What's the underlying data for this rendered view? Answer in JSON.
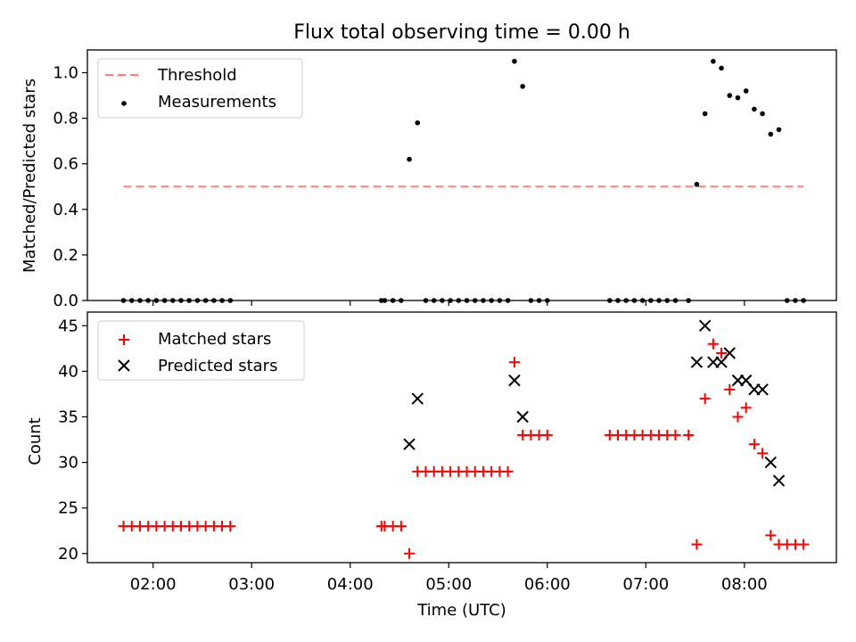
{
  "chart_data": [
    {
      "type": "scatter",
      "title": "Flux total observing time = 0.00 h",
      "xlabel": "",
      "ylabel": "Matched/Predicted stars",
      "xlim": [
        "01:20",
        "08:56"
      ],
      "ylim": [
        0,
        1.1
      ],
      "y_ticks": [
        "0.0",
        "0.2",
        "0.4",
        "0.6",
        "0.8",
        "1.0"
      ],
      "legend": {
        "position": "top-left",
        "entries": [
          "Threshold",
          "Measurements"
        ]
      },
      "series": [
        {
          "name": "Threshold",
          "style": "dashed-line",
          "color": "#ff7f7f",
          "points": [
            {
              "x": "01:42",
              "y": 0.5
            },
            {
              "x": "08:36",
              "y": 0.5
            }
          ]
        },
        {
          "name": "Measurements",
          "style": "dot",
          "color": "#000000",
          "points": [
            {
              "x": "01:42",
              "y": 0
            },
            {
              "x": "01:47",
              "y": 0
            },
            {
              "x": "01:52",
              "y": 0
            },
            {
              "x": "01:57",
              "y": 0
            },
            {
              "x": "02:02",
              "y": 0
            },
            {
              "x": "02:07",
              "y": 0
            },
            {
              "x": "02:12",
              "y": 0
            },
            {
              "x": "02:17",
              "y": 0
            },
            {
              "x": "02:22",
              "y": 0
            },
            {
              "x": "02:27",
              "y": 0
            },
            {
              "x": "02:32",
              "y": 0
            },
            {
              "x": "02:37",
              "y": 0
            },
            {
              "x": "02:42",
              "y": 0
            },
            {
              "x": "02:47",
              "y": 0
            },
            {
              "x": "04:19",
              "y": 0
            },
            {
              "x": "04:21",
              "y": 0
            },
            {
              "x": "04:26",
              "y": 0
            },
            {
              "x": "04:31",
              "y": 0
            },
            {
              "x": "04:36",
              "y": 0.62
            },
            {
              "x": "04:41",
              "y": 0.78
            },
            {
              "x": "04:46",
              "y": 0
            },
            {
              "x": "04:51",
              "y": 0
            },
            {
              "x": "04:56",
              "y": 0
            },
            {
              "x": "05:01",
              "y": 0
            },
            {
              "x": "05:06",
              "y": 0
            },
            {
              "x": "05:11",
              "y": 0
            },
            {
              "x": "05:16",
              "y": 0
            },
            {
              "x": "05:21",
              "y": 0
            },
            {
              "x": "05:26",
              "y": 0
            },
            {
              "x": "05:31",
              "y": 0
            },
            {
              "x": "05:36",
              "y": 0
            },
            {
              "x": "05:40",
              "y": 1.05
            },
            {
              "x": "05:45",
              "y": 0.94
            },
            {
              "x": "05:50",
              "y": 0
            },
            {
              "x": "05:55",
              "y": 0
            },
            {
              "x": "06:00",
              "y": 0
            },
            {
              "x": "06:38",
              "y": 0
            },
            {
              "x": "06:43",
              "y": 0
            },
            {
              "x": "06:48",
              "y": 0
            },
            {
              "x": "06:53",
              "y": 0
            },
            {
              "x": "06:58",
              "y": 0
            },
            {
              "x": "07:03",
              "y": 0
            },
            {
              "x": "07:08",
              "y": 0
            },
            {
              "x": "07:13",
              "y": 0
            },
            {
              "x": "07:18",
              "y": 0
            },
            {
              "x": "07:26",
              "y": 0
            },
            {
              "x": "07:31",
              "y": 0.51
            },
            {
              "x": "07:36",
              "y": 0.82
            },
            {
              "x": "07:41",
              "y": 1.05
            },
            {
              "x": "07:46",
              "y": 1.02
            },
            {
              "x": "07:51",
              "y": 0.9
            },
            {
              "x": "07:56",
              "y": 0.89
            },
            {
              "x": "08:01",
              "y": 0.92
            },
            {
              "x": "08:06",
              "y": 0.84
            },
            {
              "x": "08:11",
              "y": 0.82
            },
            {
              "x": "08:16",
              "y": 0.73
            },
            {
              "x": "08:21",
              "y": 0.75
            },
            {
              "x": "08:26",
              "y": 0
            },
            {
              "x": "08:31",
              "y": 0
            },
            {
              "x": "08:36",
              "y": 0
            }
          ]
        }
      ]
    },
    {
      "type": "scatter",
      "title": "",
      "xlabel": "Time (UTC)",
      "ylabel": "Count",
      "xlim": [
        "01:20",
        "08:56"
      ],
      "ylim": [
        19,
        46.5
      ],
      "x_ticks": [
        "02:00",
        "03:00",
        "04:00",
        "05:00",
        "06:00",
        "07:00",
        "08:00"
      ],
      "y_ticks": [
        "20",
        "25",
        "30",
        "35",
        "40",
        "45"
      ],
      "legend": {
        "position": "top-left",
        "entries": [
          "Matched stars",
          "Predicted stars"
        ]
      },
      "series": [
        {
          "name": "Matched stars",
          "marker": "plus",
          "color": "#ff0000",
          "points": [
            {
              "x": "01:42",
              "y": 23
            },
            {
              "x": "01:47",
              "y": 23
            },
            {
              "x": "01:52",
              "y": 23
            },
            {
              "x": "01:57",
              "y": 23
            },
            {
              "x": "02:02",
              "y": 23
            },
            {
              "x": "02:07",
              "y": 23
            },
            {
              "x": "02:12",
              "y": 23
            },
            {
              "x": "02:17",
              "y": 23
            },
            {
              "x": "02:22",
              "y": 23
            },
            {
              "x": "02:27",
              "y": 23
            },
            {
              "x": "02:32",
              "y": 23
            },
            {
              "x": "02:37",
              "y": 23
            },
            {
              "x": "02:42",
              "y": 23
            },
            {
              "x": "02:47",
              "y": 23
            },
            {
              "x": "04:19",
              "y": 23
            },
            {
              "x": "04:21",
              "y": 23
            },
            {
              "x": "04:26",
              "y": 23
            },
            {
              "x": "04:31",
              "y": 23
            },
            {
              "x": "04:36",
              "y": 20
            },
            {
              "x": "04:41",
              "y": 29
            },
            {
              "x": "04:46",
              "y": 29
            },
            {
              "x": "04:51",
              "y": 29
            },
            {
              "x": "04:56",
              "y": 29
            },
            {
              "x": "05:01",
              "y": 29
            },
            {
              "x": "05:06",
              "y": 29
            },
            {
              "x": "05:11",
              "y": 29
            },
            {
              "x": "05:16",
              "y": 29
            },
            {
              "x": "05:21",
              "y": 29
            },
            {
              "x": "05:26",
              "y": 29
            },
            {
              "x": "05:31",
              "y": 29
            },
            {
              "x": "05:36",
              "y": 29
            },
            {
              "x": "05:40",
              "y": 41
            },
            {
              "x": "05:45",
              "y": 33
            },
            {
              "x": "05:50",
              "y": 33
            },
            {
              "x": "05:55",
              "y": 33
            },
            {
              "x": "06:00",
              "y": 33
            },
            {
              "x": "06:38",
              "y": 33
            },
            {
              "x": "06:43",
              "y": 33
            },
            {
              "x": "06:48",
              "y": 33
            },
            {
              "x": "06:53",
              "y": 33
            },
            {
              "x": "06:58",
              "y": 33
            },
            {
              "x": "07:03",
              "y": 33
            },
            {
              "x": "07:08",
              "y": 33
            },
            {
              "x": "07:13",
              "y": 33
            },
            {
              "x": "07:18",
              "y": 33
            },
            {
              "x": "07:26",
              "y": 33
            },
            {
              "x": "07:31",
              "y": 21
            },
            {
              "x": "07:36",
              "y": 37
            },
            {
              "x": "07:41",
              "y": 43
            },
            {
              "x": "07:46",
              "y": 42
            },
            {
              "x": "07:51",
              "y": 38
            },
            {
              "x": "07:56",
              "y": 35
            },
            {
              "x": "08:01",
              "y": 36
            },
            {
              "x": "08:06",
              "y": 32
            },
            {
              "x": "08:11",
              "y": 31
            },
            {
              "x": "08:16",
              "y": 22
            },
            {
              "x": "08:21",
              "y": 21
            },
            {
              "x": "08:26",
              "y": 21
            },
            {
              "x": "08:31",
              "y": 21
            },
            {
              "x": "08:36",
              "y": 21
            }
          ]
        },
        {
          "name": "Predicted stars",
          "marker": "x",
          "color": "#000000",
          "points": [
            {
              "x": "04:36",
              "y": 32
            },
            {
              "x": "04:41",
              "y": 37
            },
            {
              "x": "05:40",
              "y": 39
            },
            {
              "x": "05:45",
              "y": 35
            },
            {
              "x": "07:31",
              "y": 41
            },
            {
              "x": "07:36",
              "y": 45
            },
            {
              "x": "07:41",
              "y": 41
            },
            {
              "x": "07:46",
              "y": 41
            },
            {
              "x": "07:51",
              "y": 42
            },
            {
              "x": "07:56",
              "y": 39
            },
            {
              "x": "08:01",
              "y": 39
            },
            {
              "x": "08:06",
              "y": 38
            },
            {
              "x": "08:11",
              "y": 38
            },
            {
              "x": "08:16",
              "y": 30
            },
            {
              "x": "08:21",
              "y": 28
            }
          ]
        }
      ]
    }
  ]
}
